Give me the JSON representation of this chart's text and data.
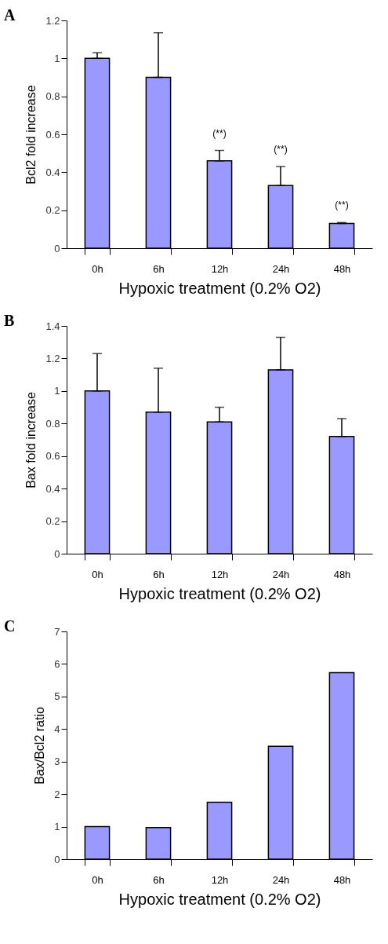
{
  "chart_data": [
    {
      "type": "bar",
      "title": "A",
      "xlabel": "Hypoxic treatment (0.2% O2)",
      "ylabel": "Bcl2 fold increase",
      "categories": [
        "0h",
        "6h",
        "12h",
        "24h",
        "48h"
      ],
      "values": [
        1.0,
        0.9,
        0.46,
        0.33,
        0.13
      ],
      "color": "#9999ff",
      "errors": [
        [
          1.0,
          1.03
        ],
        [
          0.9,
          1.135
        ],
        [
          0.46,
          0.515
        ],
        [
          0.33,
          0.43
        ],
        [
          0.13,
          0.135
        ]
      ],
      "ylim": [
        0,
        1.2
      ],
      "yticks": [
        0,
        0.2,
        0.4,
        0.6,
        0.8,
        1,
        1.2
      ],
      "grid": false,
      "annotations": [
        "(**)",
        "(**)",
        "(**)"
      ]
    },
    {
      "type": "bar",
      "title": "B",
      "xlabel": "Hypoxic treatment (0.2% O2)",
      "ylabel": "Bax fold increase",
      "categories": [
        "0h",
        "6h",
        "12h",
        "24h",
        "48h"
      ],
      "values": [
        1.0,
        0.87,
        0.81,
        1.13,
        0.72
      ],
      "color": "#9999ff",
      "errors": [
        [
          1.0,
          1.23
        ],
        [
          0.87,
          1.14
        ],
        [
          0.81,
          0.9
        ],
        [
          1.13,
          1.33
        ],
        [
          0.72,
          0.83
        ]
      ],
      "ylim": [
        0,
        1.4
      ],
      "yticks": [
        0,
        0.2,
        0.4,
        0.6,
        0.8,
        1,
        1.2,
        1.4
      ],
      "grid": false
    },
    {
      "type": "bar",
      "title": "C",
      "xlabel": "Hypoxic treatment (0.2% O2)",
      "ylabel": "Bax/Bcl2 ratio",
      "categories": [
        "0h",
        "6h",
        "12h",
        "24h",
        "48h"
      ],
      "values": [
        1.0,
        0.97,
        1.75,
        3.47,
        5.73
      ],
      "color": "#9999ff",
      "ylim": [
        0,
        7
      ],
      "yticks": [
        0,
        1,
        2,
        3,
        4,
        5,
        6,
        7
      ],
      "grid": false
    }
  ]
}
